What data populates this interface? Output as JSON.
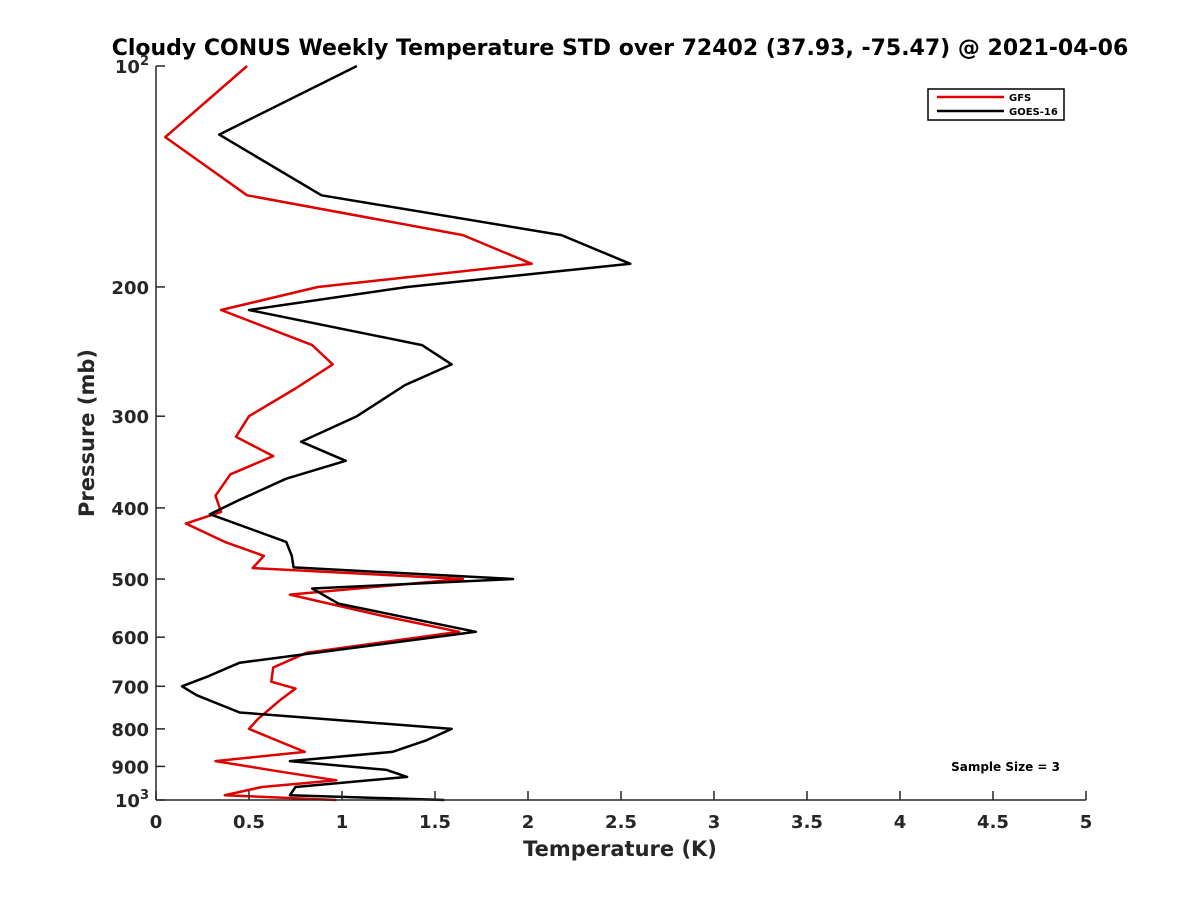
{
  "chart_data": {
    "type": "line",
    "title": "Cloudy CONUS Weekly Temperature STD over 72402 (37.93, -75.47) @ 2021-04-06",
    "xlabel": "Temperature (K)",
    "ylabel": "Pressure (mb)",
    "xlim": [
      0,
      5
    ],
    "ylim": [
      1000,
      100
    ],
    "yscale": "log",
    "y_reversed": true,
    "grid": false,
    "legend_position": "top-right",
    "x_ticks": [
      "0",
      "0.5",
      "1",
      "1.5",
      "2",
      "2.5",
      "3",
      "3.5",
      "4",
      "4.5",
      "5"
    ],
    "y_ticks": [
      {
        "value": 100,
        "base": "10",
        "exp": "2"
      },
      {
        "value": 200,
        "label": "200"
      },
      {
        "value": 300,
        "label": "300"
      },
      {
        "value": 400,
        "label": "400"
      },
      {
        "value": 500,
        "label": "500"
      },
      {
        "value": 600,
        "label": "600"
      },
      {
        "value": 700,
        "label": "700"
      },
      {
        "value": 800,
        "label": "800"
      },
      {
        "value": 900,
        "label": "900"
      },
      {
        "value": 1000,
        "base": "10",
        "exp": "3"
      }
    ],
    "annotation": "Sample Size = 3",
    "series": [
      {
        "name": "GFS",
        "color": "#e00000",
        "points": [
          [
            0.49,
            100
          ],
          [
            0.05,
            125
          ],
          [
            0.49,
            150
          ],
          [
            1.65,
            170
          ],
          [
            2.02,
            186
          ],
          [
            0.87,
            200
          ],
          [
            0.35,
            215
          ],
          [
            0.84,
            240
          ],
          [
            0.95,
            255
          ],
          [
            0.75,
            275
          ],
          [
            0.5,
            300
          ],
          [
            0.43,
            320
          ],
          [
            0.63,
            340
          ],
          [
            0.4,
            360
          ],
          [
            0.32,
            385
          ],
          [
            0.35,
            405
          ],
          [
            0.16,
            420
          ],
          [
            0.37,
            445
          ],
          [
            0.58,
            465
          ],
          [
            0.52,
            483
          ],
          [
            1.65,
            500
          ],
          [
            0.72,
            525
          ],
          [
            1.2,
            560
          ],
          [
            1.63,
            590
          ],
          [
            0.81,
            630
          ],
          [
            0.63,
            660
          ],
          [
            0.62,
            690
          ],
          [
            0.75,
            705
          ],
          [
            0.67,
            730
          ],
          [
            0.55,
            775
          ],
          [
            0.5,
            800
          ],
          [
            0.8,
            860
          ],
          [
            0.32,
            885
          ],
          [
            0.67,
            915
          ],
          [
            0.97,
            940
          ],
          [
            0.57,
            960
          ],
          [
            0.37,
            985
          ],
          [
            0.97,
            1000
          ]
        ]
      },
      {
        "name": "GOES-16",
        "color": "#000000",
        "points": [
          [
            1.08,
            100
          ],
          [
            0.34,
            124
          ],
          [
            0.89,
            150
          ],
          [
            2.18,
            170
          ],
          [
            2.55,
            186
          ],
          [
            1.35,
            200
          ],
          [
            0.5,
            215
          ],
          [
            1.43,
            240
          ],
          [
            1.59,
            255
          ],
          [
            1.34,
            272
          ],
          [
            1.08,
            300
          ],
          [
            0.78,
            325
          ],
          [
            1.02,
            345
          ],
          [
            0.7,
            365
          ],
          [
            0.45,
            390
          ],
          [
            0.29,
            408
          ],
          [
            0.7,
            445
          ],
          [
            0.73,
            465
          ],
          [
            0.74,
            482
          ],
          [
            1.92,
            500
          ],
          [
            0.84,
            515
          ],
          [
            0.98,
            540
          ],
          [
            1.72,
            590
          ],
          [
            1.07,
            620
          ],
          [
            0.45,
            650
          ],
          [
            0.27,
            680
          ],
          [
            0.14,
            700
          ],
          [
            0.22,
            720
          ],
          [
            0.45,
            760
          ],
          [
            1.59,
            800
          ],
          [
            1.45,
            830
          ],
          [
            1.27,
            860
          ],
          [
            0.72,
            885
          ],
          [
            1.24,
            910
          ],
          [
            1.35,
            930
          ],
          [
            0.75,
            960
          ],
          [
            0.72,
            985
          ],
          [
            1.55,
            1000
          ]
        ]
      }
    ]
  }
}
